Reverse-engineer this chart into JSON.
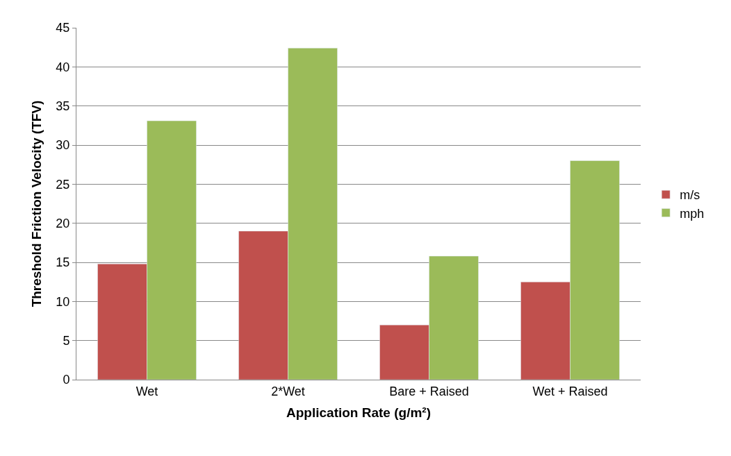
{
  "chart_data": {
    "type": "bar",
    "xlabel": "Application Rate (g/m²)",
    "ylabel": "Threshold Friction Velocity (TFV)",
    "categories": [
      "Wet",
      "2*Wet",
      "Bare + Raised",
      "Wet + Raised"
    ],
    "series": [
      {
        "name": "m/s",
        "color": "#c0504d",
        "values": [
          14.8,
          19.0,
          7.0,
          12.5
        ]
      },
      {
        "name": "mph",
        "color": "#9bbb59",
        "values": [
          33.1,
          42.4,
          15.8,
          28.0
        ]
      }
    ],
    "ylim": [
      0,
      45
    ],
    "yticks": [
      0,
      5,
      10,
      15,
      20,
      25,
      30,
      35,
      40,
      45
    ],
    "grid": "y",
    "legend": "right"
  }
}
